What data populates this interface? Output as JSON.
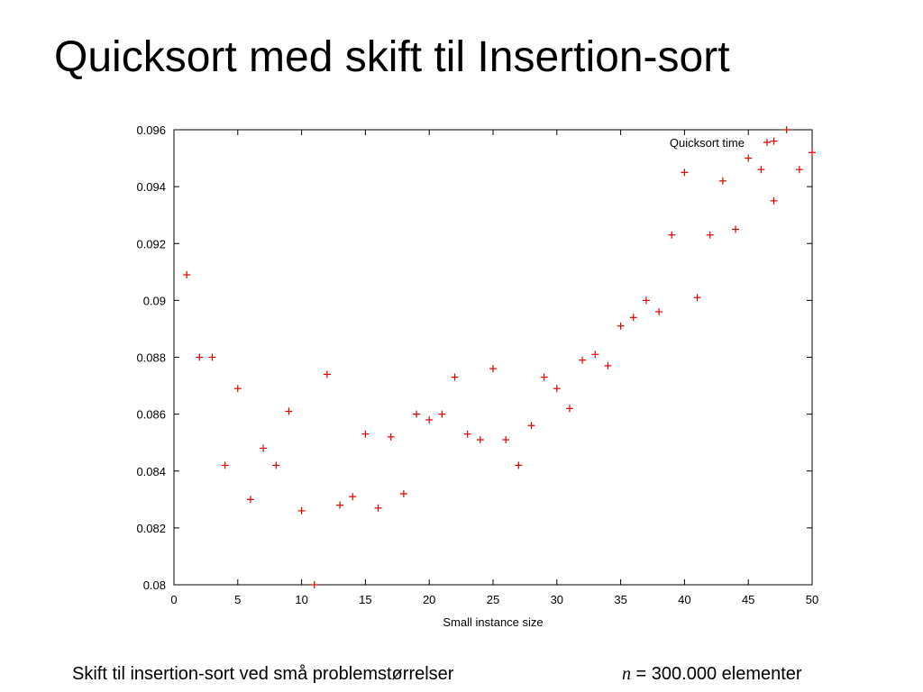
{
  "slide": {
    "title": "Quicksort med skift til Insertion-sort",
    "caption_left": "Skift til insertion-sort ved små problemstørrelser",
    "caption_right_var": "n",
    "caption_right_text": " = 300.000 elementer"
  },
  "chart_data": {
    "type": "scatter",
    "xlabel": "Small instance size",
    "ylabel": "",
    "xlim": [
      0,
      50
    ],
    "ylim": [
      0.08,
      0.096
    ],
    "xticks": [
      0,
      5,
      10,
      15,
      20,
      25,
      30,
      35,
      40,
      45,
      50
    ],
    "yticks": [
      0.08,
      0.082,
      0.084,
      0.086,
      0.088,
      0.09,
      0.092,
      0.094,
      0.096
    ],
    "ytick_labels": [
      "0.08",
      "0.082",
      "0.084",
      "0.086",
      "0.088",
      "0.09",
      "0.092",
      "0.094",
      "0.096"
    ],
    "grid": false,
    "legend_position": "top-right",
    "marker_color": "#e00000",
    "series": [
      {
        "name": "Quicksort time",
        "x": [
          1,
          2,
          3,
          4,
          5,
          6,
          7,
          8,
          9,
          10,
          11,
          12,
          13,
          14,
          15,
          16,
          17,
          18,
          19,
          20,
          21,
          22,
          23,
          24,
          25,
          26,
          27,
          28,
          29,
          30,
          31,
          32,
          33,
          34,
          35,
          36,
          37,
          38,
          39,
          40,
          41,
          42,
          43,
          44,
          45,
          46,
          47,
          48,
          49,
          50
        ],
        "y": [
          0.0909,
          0.088,
          0.088,
          0.0842,
          0.0869,
          0.083,
          0.0848,
          0.0842,
          0.0861,
          0.0826,
          0.08,
          0.0874,
          0.0828,
          0.0831,
          0.0853,
          0.0827,
          0.0852,
          0.0832,
          0.086,
          0.0858,
          0.086,
          0.0873,
          0.0853,
          0.0851,
          0.0876,
          0.0851,
          0.0842,
          0.0856,
          0.0873,
          0.0869,
          0.0862,
          0.0879,
          0.0881,
          0.0877,
          0.0891,
          0.0894,
          0.09,
          0.0896,
          0.0923,
          0.0945,
          0.0901,
          0.0923,
          0.0942,
          0.0925,
          0.095,
          0.0946,
          0.0935,
          0.096,
          0.0946,
          0.0952
        ]
      }
    ],
    "extra_points": [
      {
        "x": 47,
        "y": 0.0956
      }
    ]
  }
}
